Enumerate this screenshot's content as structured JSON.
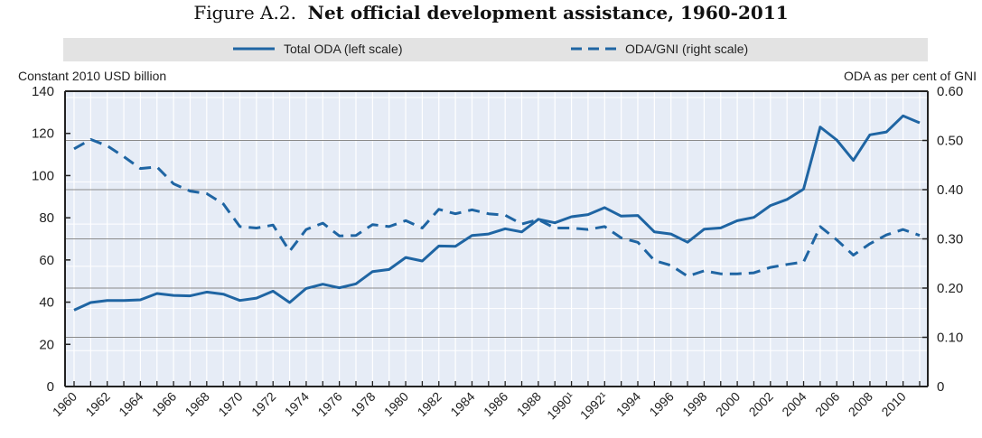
{
  "chart_data": {
    "type": "line",
    "title_prefix": "Figure A.2.",
    "title": "Net official development assistance, 1960-2011",
    "ylabel_left": "Constant 2010 USD billion",
    "ylabel_right": "ODA as per cent of GNI",
    "ylim_left": [
      0,
      140
    ],
    "ylim_right": [
      0,
      0.6
    ],
    "yticks_left": [
      "0",
      "20",
      "40",
      "60",
      "80",
      "100",
      "120",
      "140"
    ],
    "yticks_right": [
      "0",
      "0.10",
      "0.20",
      "0.30",
      "0.40",
      "0.50",
      "0.60"
    ],
    "legend_position": "top",
    "x": [
      1960,
      1961,
      1962,
      1963,
      1964,
      1965,
      1966,
      1967,
      1968,
      1969,
      1970,
      1971,
      1972,
      1973,
      1974,
      1975,
      1976,
      1977,
      1978,
      1979,
      1980,
      1981,
      1982,
      1983,
      1984,
      1985,
      1986,
      1987,
      1988,
      1989,
      1990,
      1991,
      1992,
      1993,
      1994,
      1995,
      1996,
      1997,
      1998,
      1999,
      2000,
      2001,
      2002,
      2003,
      2004,
      2005,
      2006,
      2007,
      2008,
      2009,
      2010,
      2011
    ],
    "xtick_labels": [
      "1960",
      "1962",
      "1964",
      "1966",
      "1968",
      "1970",
      "1972",
      "1974",
      "1976",
      "1978",
      "1980",
      "1982",
      "1984",
      "1986",
      "1988",
      "1990¹",
      "1992¹",
      "1994",
      "1996",
      "1998",
      "2000",
      "2002",
      "2004",
      "2006",
      "2008",
      "2010"
    ],
    "series": [
      {
        "name": "Total ODA (left scale)",
        "axis": "left",
        "style": "solid",
        "color": "#1f65a3",
        "values": [
          36.2,
          39.8,
          40.8,
          40.8,
          41.1,
          44.1,
          43.2,
          43.0,
          44.8,
          43.8,
          40.8,
          41.9,
          45.2,
          39.8,
          46.5,
          48.5,
          46.8,
          48.7,
          54.5,
          55.5,
          61.2,
          59.5,
          66.6,
          66.5,
          71.6,
          72.3,
          74.8,
          73.3,
          79.3,
          77.6,
          80.5,
          81.5,
          84.8,
          80.8,
          81.1,
          73.3,
          72.3,
          68.4,
          74.6,
          75.2,
          78.6,
          80.2,
          85.8,
          88.7,
          93.6,
          123.0,
          116.9,
          107.2,
          119.3,
          120.7,
          128.3,
          125.0
        ]
      },
      {
        "name": "ODA/GNI (right scale)",
        "axis": "right",
        "style": "dashed",
        "color": "#1f65a3",
        "values": [
          0.483,
          0.502,
          0.489,
          0.467,
          0.443,
          0.446,
          0.412,
          0.397,
          0.392,
          0.371,
          0.325,
          0.322,
          0.328,
          0.275,
          0.319,
          0.332,
          0.306,
          0.307,
          0.329,
          0.325,
          0.337,
          0.322,
          0.36,
          0.351,
          0.359,
          0.351,
          0.348,
          0.33,
          0.339,
          0.322,
          0.322,
          0.319,
          0.325,
          0.302,
          0.293,
          0.256,
          0.246,
          0.224,
          0.235,
          0.229,
          0.229,
          0.231,
          0.242,
          0.248,
          0.253,
          0.325,
          0.298,
          0.267,
          0.29,
          0.308,
          0.319,
          0.307
        ]
      }
    ],
    "colors": {
      "plot_background": "#e6ecf6",
      "legend_background": "#e3e3e3",
      "line": "#1f65a3"
    }
  }
}
